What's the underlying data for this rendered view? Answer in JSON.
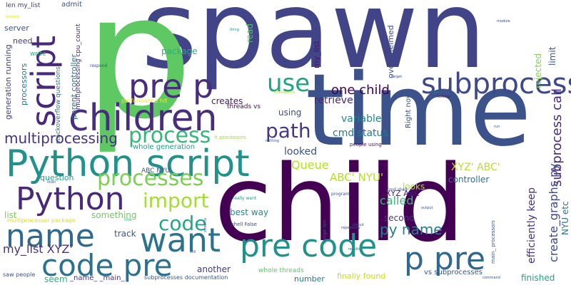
{
  "words": [
    {
      "text": "spawn",
      "color": "#414487"
    },
    {
      "text": "p",
      "color": "#5ec962"
    },
    {
      "text": "time",
      "color": "#3b528b"
    },
    {
      "text": "child",
      "color": "#440154"
    },
    {
      "text": "children",
      "color": "#472d7b"
    },
    {
      "text": "Python script",
      "color": "#21918c"
    },
    {
      "text": "pre p",
      "color": "#472d7b"
    },
    {
      "text": "subprocess",
      "color": "#3e4989"
    },
    {
      "text": "script",
      "color": "#482878"
    },
    {
      "text": "Python",
      "color": "#482878"
    },
    {
      "text": "name",
      "color": "#31688e"
    },
    {
      "text": "want",
      "color": "#2c728e"
    },
    {
      "text": "code pre",
      "color": "#2c728e"
    },
    {
      "text": "pre code",
      "color": "#21918c"
    },
    {
      "text": "p pre",
      "color": "#31688e"
    },
    {
      "text": "process",
      "color": "#35b779"
    },
    {
      "text": "processes",
      "color": "#7ad151"
    },
    {
      "text": "import",
      "color": "#a5db36"
    },
    {
      "text": "code",
      "color": "#22a884"
    },
    {
      "text": "path",
      "color": "#443983"
    },
    {
      "text": "use",
      "color": "#20a486"
    },
    {
      "text": "one child",
      "color": "#440154"
    },
    {
      "text": "multiprocessing",
      "color": "#46327e"
    },
    {
      "text": "subprocess call",
      "color": "#482878"
    },
    {
      "text": "create_graphs py",
      "color": "#3e4989"
    },
    {
      "text": "efficiently keep",
      "color": "#46337f"
    },
    {
      "text": "XYZ' ABC'",
      "color": "#bddf26"
    },
    {
      "text": "ABC' NYU'",
      "color": "#b5de2b"
    },
    {
      "text": "py name",
      "color": "#287d8e"
    },
    {
      "text": "my_list XYZ'",
      "color": "#46327e"
    },
    {
      "text": "Queue",
      "color": "#b5de2b"
    },
    {
      "text": "variable",
      "color": "#25848e"
    },
    {
      "text": "cmd status",
      "color": "#2a788e"
    },
    {
      "text": "retrieve",
      "color": "#482475"
    },
    {
      "text": "looked",
      "color": "#3b528b"
    },
    {
      "text": "called",
      "color": "#3aba76"
    },
    {
      "text": "looks",
      "color": "#a8db34"
    },
    {
      "text": "controller",
      "color": "#2c728e"
    },
    {
      "text": "best way",
      "color": "#228c8d"
    },
    {
      "text": "second",
      "color": "#453882"
    },
    {
      "text": "XYZ ABC",
      "color": "#482475"
    },
    {
      "text": "rejected",
      "color": "#7fd34e"
    },
    {
      "text": "limit",
      "color": "#3b528b"
    },
    {
      "text": "NYU etc",
      "color": "#2c728e"
    },
    {
      "text": "finished",
      "color": "#20a386"
    },
    {
      "text": "another",
      "color": "#443a83"
    },
    {
      "text": "number",
      "color": "#2a768e"
    },
    {
      "text": "finally found",
      "color": "#c8e020"
    },
    {
      "text": "vs subprocesses",
      "color": "#39568c"
    },
    {
      "text": "whole threads",
      "color": "#5cc863"
    },
    {
      "text": "package",
      "color": "#29af7f"
    },
    {
      "text": "using",
      "color": "#3e4a89"
    },
    {
      "text": "creates",
      "color": "#481a6c"
    },
    {
      "text": "threads vs",
      "color": "#46085c"
    },
    {
      "text": "whole generation",
      "color": "#1fa088"
    },
    {
      "text": "question",
      "color": "#1f9f88"
    },
    {
      "text": "list",
      "color": "#7ad151"
    },
    {
      "text": "something",
      "color": "#6ccd5a"
    },
    {
      "text": "track",
      "color": "#3a538b"
    },
    {
      "text": "seem",
      "color": "#2db27d"
    },
    {
      "text": "_name_ _main_",
      "color": "#46337f"
    },
    {
      "text": "ABC NYU",
      "color": "#3b528b"
    },
    {
      "text": "admit",
      "color": "#3b528b"
    },
    {
      "text": "len my_list",
      "color": "#453581"
    },
    {
      "text": "server",
      "color": "#3b528b"
    },
    {
      "text": "need",
      "color": "#453882"
    },
    {
      "text": "generation running",
      "color": "#433e85"
    },
    {
      "text": "processors",
      "color": "#2b758e"
    },
    {
      "text": "parent controller",
      "color": "#2e6d8e"
    },
    {
      "text": "multiprocessing cpu_count",
      "color": "#481c6e"
    },
    {
      "text": "stackoverflow questions",
      "color": "#2d708e"
    },
    {
      "text": "write",
      "color": "#25ac82"
    },
    {
      "text": "respond",
      "color": "#3b528b"
    },
    {
      "text": "performance hit",
      "color": "#fde725"
    },
    {
      "text": "It processors",
      "color": "#a0da39"
    },
    {
      "text": "Intelligently",
      "color": "#a2da37"
    },
    {
      "text": "read",
      "color": "#52c569"
    },
    {
      "text": "thing",
      "color": "#228c8d"
    },
    {
      "text": "overwhelmed",
      "color": "#3e4989"
    },
    {
      "text": "my_list",
      "color": "#481467"
    },
    {
      "text": "Right now",
      "color": "#3b528b"
    },
    {
      "text": "Essentially",
      "color": "#2a788e"
    },
    {
      "text": "looking",
      "color": "#481467"
    },
    {
      "text": "people using",
      "color": "#470e61"
    },
    {
      "text": "target",
      "color": "#3b528b"
    },
    {
      "text": "module",
      "color": "#3e4989"
    },
    {
      "text": "run",
      "color": "#3b528b"
    },
    {
      "text": "cmd shell",
      "color": "#3b528b"
    },
    {
      "text": "stdin",
      "color": "#3b528b"
    },
    {
      "text": "stdout",
      "color": "#3b528b"
    },
    {
      "text": "repeatedly",
      "color": "#3b528b"
    },
    {
      "text": "line",
      "color": "#2db27d"
    },
    {
      "text": "really want",
      "color": "#21918c"
    },
    {
      "text": "shell False",
      "color": "#3e4989"
    },
    {
      "text": "range len",
      "color": "#3b528b"
    },
    {
      "text": "program",
      "color": "#3b528b"
    },
    {
      "text": "multiprocessor package",
      "color": "#dde318"
    },
    {
      "text": "saw people",
      "color": "#3b528b"
    },
    {
      "text": "subprocesses documentation",
      "color": "#3b528b"
    },
    {
      "text": "main_ processors",
      "color": "#3b528b"
    },
    {
      "text": "results",
      "color": "#2c728e"
    },
    {
      "text": "command",
      "color": "#3b528b"
    },
    {
      "text": "will",
      "color": "#3b528b"
    },
    {
      "text": "streams",
      "color": "#3b528b"
    },
    {
      "text": "nothing",
      "color": "#3b528b"
    },
    {
      "text": "interest",
      "color": "#dde318"
    },
    {
      "text": "output",
      "color": "#3b528b"
    }
  ]
}
